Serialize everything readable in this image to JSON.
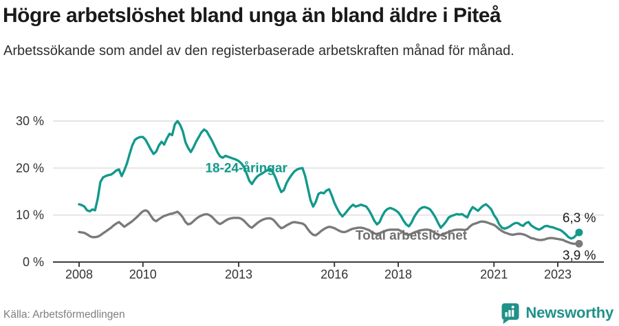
{
  "header": {
    "title": "Högre arbetslöshet bland unga än bland äldre i Piteå",
    "subtitle": "Arbetssökande som andel av den registerbaserade arbetskraften månad för månad."
  },
  "colors": {
    "accent_teal": "#12998C",
    "series_gray": "#7A7A7A",
    "axis": "#3C3C3C",
    "grid": "#DCDCDC",
    "end_label_text": "#1A1A1A"
  },
  "chart_data": {
    "type": "line",
    "title": "Högre arbetslöshet bland unga än bland äldre i Piteå",
    "unit": "%",
    "frequency": "monthly",
    "x_start": "2008-01",
    "x_end": "2023-09",
    "ylim": [
      0,
      31.5
    ],
    "grid": "horizontal",
    "legend_position": "inline-labels",
    "yticks": [
      {
        "value": 0,
        "label": "0 %"
      },
      {
        "value": 10,
        "label": "10 %"
      },
      {
        "value": 20,
        "label": "20 %"
      },
      {
        "value": 30,
        "label": "30 %"
      }
    ],
    "xticks": [
      {
        "year": 2008,
        "label": "2008"
      },
      {
        "year": 2010,
        "label": "2010"
      },
      {
        "year": 2013,
        "label": "2013"
      },
      {
        "year": 2016,
        "label": "2016"
      },
      {
        "year": 2018,
        "label": "2018"
      },
      {
        "year": 2021,
        "label": "2021"
      },
      {
        "year": 2023,
        "label": "2023"
      }
    ],
    "series": [
      {
        "name": "18-24-åringar",
        "color": "#12998C",
        "label_color": "#12998C",
        "label_at": {
          "year": 2013.24,
          "value": 20.0
        },
        "end_label": "6,3 %",
        "end_label_offset": [
          -24,
          -15
        ],
        "values": [
          12.3,
          12.1,
          11.8,
          11.0,
          10.8,
          11.2,
          11.0,
          13.5,
          17.0,
          18.0,
          18.3,
          18.5,
          18.6,
          19.0,
          19.5,
          19.7,
          18.3,
          19.5,
          21.0,
          23.0,
          24.8,
          26.0,
          26.4,
          26.6,
          26.6,
          26.0,
          25.0,
          23.9,
          23.0,
          23.5,
          24.8,
          25.6,
          25.0,
          26.3,
          27.3,
          27.0,
          29.3,
          30.0,
          29.2,
          27.8,
          25.5,
          24.3,
          23.4,
          24.4,
          25.6,
          26.6,
          27.6,
          28.2,
          27.8,
          26.8,
          25.8,
          24.6,
          23.4,
          22.5,
          22.2,
          22.6,
          22.4,
          22.2,
          22.0,
          21.8,
          21.5,
          21.0,
          20.2,
          18.8,
          17.3,
          16.6,
          17.5,
          18.2,
          18.6,
          18.9,
          19.3,
          19.6,
          19.8,
          19.0,
          17.8,
          16.2,
          14.9,
          15.3,
          16.8,
          17.8,
          18.6,
          19.3,
          19.7,
          19.9,
          20.0,
          18.3,
          15.8,
          13.2,
          11.8,
          12.8,
          14.5,
          14.8,
          14.6,
          15.2,
          15.5,
          14.2,
          12.6,
          11.4,
          10.4,
          9.7,
          10.3,
          11.0,
          11.7,
          12.2,
          11.8,
          12.0,
          12.2,
          12.0,
          11.8,
          11.0,
          10.0,
          8.8,
          8.0,
          8.5,
          9.8,
          10.8,
          11.3,
          11.5,
          11.3,
          11.0,
          10.6,
          9.8,
          8.8,
          8.0,
          7.6,
          8.4,
          9.6,
          10.5,
          11.2,
          11.6,
          11.7,
          11.5,
          11.2,
          10.4,
          9.5,
          8.3,
          7.3,
          7.9,
          8.6,
          9.5,
          9.8,
          10.0,
          10.2,
          10.1,
          10.2,
          9.8,
          9.5,
          10.8,
          11.7,
          11.3,
          10.9,
          11.5,
          12.0,
          12.3,
          11.8,
          11.2,
          10.0,
          9.2,
          8.0,
          7.3,
          7.1,
          7.3,
          7.6,
          8.0,
          8.3,
          8.3,
          7.9,
          7.7,
          8.3,
          8.5,
          7.8,
          7.4,
          7.1,
          6.9,
          7.2,
          7.6,
          7.7,
          7.5,
          7.4,
          7.2,
          7.0,
          6.8,
          6.4,
          5.9,
          5.3,
          5.0,
          5.2,
          5.8,
          6.3
        ]
      },
      {
        "name": "Total arbetslöshet",
        "color": "#7A7A7A",
        "label_color": "#6F6F6F",
        "label_at": {
          "year": 2018.41,
          "value": 5.6
        },
        "end_label": "3,9 %",
        "end_label_offset": [
          -24,
          23
        ],
        "values": [
          6.4,
          6.3,
          6.2,
          5.9,
          5.5,
          5.3,
          5.3,
          5.4,
          5.7,
          6.1,
          6.5,
          6.9,
          7.3,
          7.8,
          8.2,
          8.5,
          8.0,
          7.5,
          7.9,
          8.3,
          8.7,
          9.2,
          9.7,
          10.3,
          10.8,
          11.0,
          10.7,
          9.8,
          9.0,
          8.7,
          9.1,
          9.5,
          9.8,
          10.0,
          10.2,
          10.3,
          10.5,
          10.7,
          10.2,
          9.5,
          8.5,
          8.0,
          8.2,
          8.7,
          9.2,
          9.6,
          9.9,
          10.1,
          10.2,
          10.0,
          9.6,
          9.0,
          8.4,
          8.1,
          8.4,
          8.8,
          9.1,
          9.3,
          9.4,
          9.4,
          9.4,
          9.2,
          8.8,
          8.2,
          7.6,
          7.3,
          7.8,
          8.3,
          8.7,
          9.0,
          9.2,
          9.3,
          9.3,
          9.0,
          8.4,
          7.7,
          7.2,
          7.4,
          7.8,
          8.1,
          8.4,
          8.5,
          8.4,
          8.3,
          8.2,
          7.8,
          7.0,
          6.3,
          5.8,
          5.7,
          6.1,
          6.6,
          7.0,
          7.3,
          7.5,
          7.4,
          7.2,
          6.9,
          6.6,
          6.4,
          6.4,
          6.6,
          6.9,
          7.1,
          7.2,
          7.3,
          7.3,
          7.2,
          7.0,
          6.8,
          6.4,
          6.1,
          5.9,
          6.1,
          6.4,
          6.6,
          6.8,
          6.9,
          6.9,
          6.9,
          6.9,
          6.6,
          6.2,
          5.9,
          5.8,
          6.0,
          6.3,
          6.5,
          6.7,
          6.8,
          6.9,
          6.9,
          6.8,
          6.5,
          6.1,
          5.8,
          5.7,
          5.9,
          6.2,
          6.4,
          6.6,
          6.8,
          6.9,
          6.9,
          6.9,
          6.8,
          7.0,
          7.6,
          8.0,
          8.2,
          8.4,
          8.6,
          8.6,
          8.5,
          8.3,
          8.1,
          7.9,
          7.5,
          7.0,
          6.6,
          6.3,
          6.1,
          5.9,
          5.8,
          5.9,
          6.0,
          6.0,
          5.9,
          5.7,
          5.4,
          5.1,
          5.0,
          4.8,
          4.7,
          4.7,
          4.8,
          5.0,
          5.1,
          5.1,
          5.0,
          4.9,
          4.8,
          4.7,
          4.4,
          4.2,
          4.0,
          3.9,
          3.9,
          3.9
        ]
      }
    ]
  },
  "footer": {
    "source": "Källa: Arbetsförmedlingen",
    "brand": "Newsworthy"
  }
}
